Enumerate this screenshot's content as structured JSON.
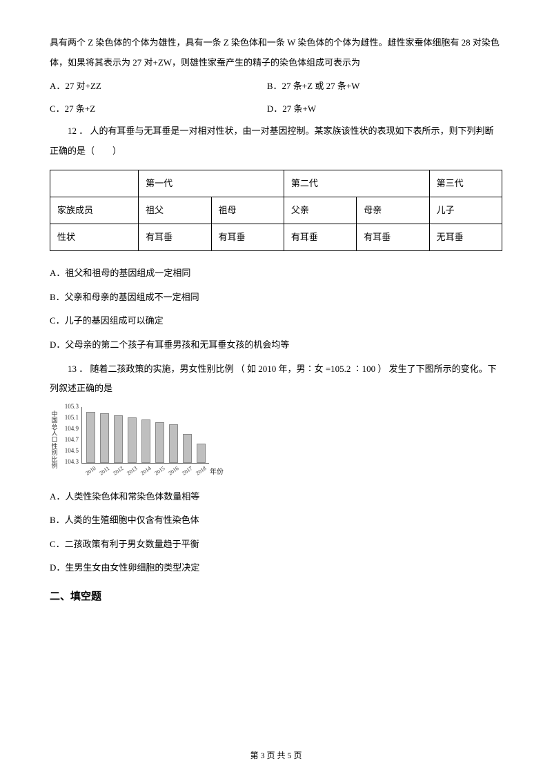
{
  "q11": {
    "cont": "具有两个 Z 染色体的个体为雄性，具有一条 Z 染色体和一条 W 染色体的个体为雌性。雌性家蚕体细胞有 28 对染色体，如果将其表示为 27 对+ZW，则雄性家蚕产生的精子的染色体组成可表示为",
    "A": "A．27 对+ZZ",
    "B": "B．27 条+Z 或 27 条+W",
    "C": "C．27 条+Z",
    "D": "D．27 条+W"
  },
  "q12": {
    "stem": "12 ． 人的有耳垂与无耳垂是一对相对性状，由一对基因控制。某家族该性状的表现如下表所示，则下列判断正确的是（　　）",
    "table": {
      "h1": "第一代",
      "h2": "第二代",
      "h3": "第三代",
      "r1c0": "家族成员",
      "r1c1": "祖父",
      "r1c2": "祖母",
      "r1c3": "父亲",
      "r1c4": "母亲",
      "r1c5": "儿子",
      "r2c0": "性状",
      "r2c1": "有耳垂",
      "r2c2": "有耳垂",
      "r2c3": "有耳垂",
      "r2c4": "有耳垂",
      "r2c5": "无耳垂"
    },
    "A": "A．祖父和祖母的基因组成一定相同",
    "B": "B．父亲和母亲的基因组成不一定相同",
    "C": "C．儿子的基因组成可以确定",
    "D": "D．父母亲的第二个孩子有耳垂男孩和无耳垂女孩的机会均等"
  },
  "q13": {
    "stem": "13 ． 随着二孩政策的实施，男女性别比例 （ 如 2010 年，男∶女 =105.2 ∶100 ） 发生了下图所示的变化。下列叙述正确的是",
    "chart": {
      "type": "bar",
      "ylabel": "中国总人口性别比例",
      "xlabel": "年份",
      "ylim": [
        104.3,
        105.3
      ],
      "yticks": [
        "105.3",
        "105.1",
        "104.9",
        "104.7",
        "104.5",
        "104.3"
      ],
      "categories": [
        "2010",
        "2011",
        "2012",
        "2013",
        "2014",
        "2015",
        "2016",
        "2017",
        "2018"
      ],
      "values": [
        105.2,
        105.18,
        105.14,
        105.1,
        105.06,
        105.02,
        104.98,
        104.81,
        104.64
      ],
      "bar_color": "#bfbfbf",
      "border_color": "#888888",
      "axis_color": "#666666",
      "bg": "#ffffff"
    },
    "A": "A．人类性染色体和常染色体数量相等",
    "B": "B．人类的生殖细胞中仅含有性染色体",
    "C": "C．二孩政策有利于男女数量趋于平衡",
    "D": "D．生男生女由女性卵细胞的类型决定"
  },
  "section2": "二、填空题",
  "footer": "第 3 页 共 5 页"
}
